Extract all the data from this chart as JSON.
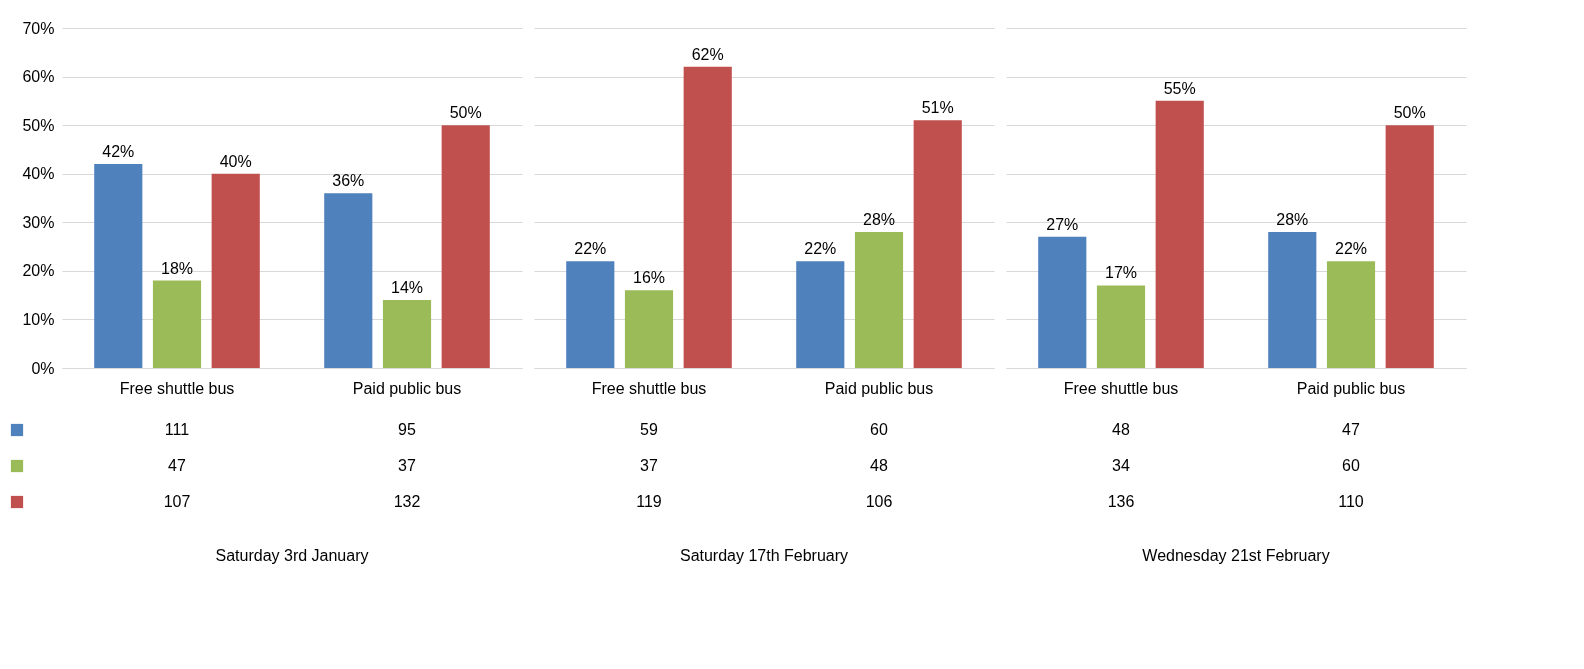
{
  "chart_data": [
    {
      "type": "bar",
      "xlabel": "Saturday 3rd January",
      "categories": [
        "Free shuttle bus",
        "Paid public bus"
      ],
      "series": [
        {
          "color": "#4f81bd",
          "values": [
            42,
            36
          ],
          "value_labels": [
            "42%",
            "36%"
          ]
        },
        {
          "color": "#9bbb59",
          "values": [
            18,
            14
          ],
          "value_labels": [
            "18%",
            "14%"
          ]
        },
        {
          "color": "#c0504d",
          "values": [
            40,
            50
          ],
          "value_labels": [
            "40%",
            "50%"
          ]
        }
      ],
      "ylim": [
        0,
        70
      ],
      "yticks": [
        {
          "value": 0,
          "label": "0%"
        },
        {
          "value": 10,
          "label": "10%"
        },
        {
          "value": 20,
          "label": "20%"
        },
        {
          "value": 30,
          "label": "30%"
        },
        {
          "value": 40,
          "label": "40%"
        },
        {
          "value": 50,
          "label": "50%"
        },
        {
          "value": 60,
          "label": "60%"
        },
        {
          "value": 70,
          "label": "70%"
        }
      ],
      "grid": "y",
      "annotations": [
        "111",
        "95",
        "47",
        "37",
        "107",
        "132"
      ]
    },
    {
      "type": "bar",
      "xlabel": "Saturday 17th February",
      "categories": [
        "Free shuttle bus",
        "Paid public bus"
      ],
      "series": [
        {
          "color": "#4f81bd",
          "values": [
            22,
            22
          ],
          "value_labels": [
            "22%",
            "22%"
          ]
        },
        {
          "color": "#9bbb59",
          "values": [
            16,
            28
          ],
          "value_labels": [
            "16%",
            "28%"
          ]
        },
        {
          "color": "#c0504d",
          "values": [
            62,
            51
          ],
          "value_labels": [
            "62%",
            "51%"
          ]
        }
      ],
      "ylim": [
        0,
        70
      ],
      "yticks": [
        {
          "value": 0,
          "label": null
        },
        {
          "value": 10,
          "label": null
        },
        {
          "value": 20,
          "label": null
        },
        {
          "value": 30,
          "label": null
        },
        {
          "value": 40,
          "label": null
        },
        {
          "value": 50,
          "label": null
        },
        {
          "value": 60,
          "label": null
        },
        {
          "value": 70,
          "label": null
        }
      ],
      "grid": "y",
      "tick_labels": "x",
      "annotations": [
        "59",
        "60",
        "37",
        "48",
        "119",
        "106"
      ]
    },
    {
      "type": "bar",
      "xlabel": "Wednesday 21st February",
      "categories": [
        "Free shuttle bus",
        "Paid public bus"
      ],
      "series": [
        {
          "color": "#4f81bd",
          "values": [
            27,
            28
          ],
          "value_labels": [
            "27%",
            "28%"
          ]
        },
        {
          "color": "#9bbb59",
          "values": [
            17,
            22
          ],
          "value_labels": [
            "17%",
            "22%"
          ]
        },
        {
          "color": "#c0504d",
          "values": [
            55,
            50
          ],
          "value_labels": [
            "55%",
            "50%"
          ]
        }
      ],
      "ylim": [
        0,
        70
      ],
      "yticks": [
        {
          "value": 0,
          "label": null
        },
        {
          "value": 10,
          "label": null
        },
        {
          "value": 20,
          "label": null
        },
        {
          "value": 30,
          "label": null
        },
        {
          "value": 40,
          "label": null
        },
        {
          "value": 50,
          "label": null
        },
        {
          "value": 60,
          "label": null
        },
        {
          "value": 70,
          "label": null
        }
      ],
      "grid": "y",
      "tick_labels": "x",
      "annotations": [
        "48",
        "47",
        "34",
        "60",
        "136",
        "110"
      ]
    }
  ]
}
